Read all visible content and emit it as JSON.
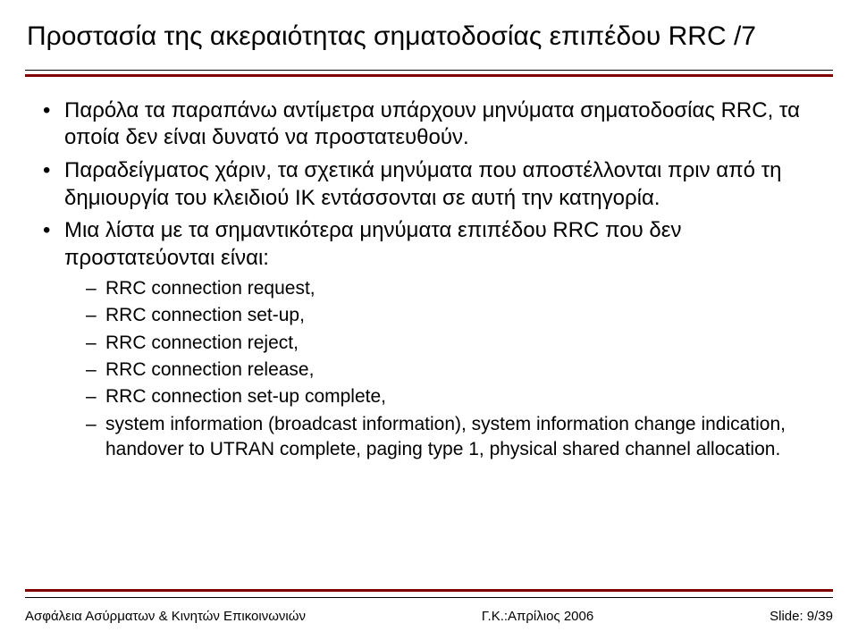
{
  "title": "Προστασία της ακεραιότητας σηματοδοσίας επιπέδου RRC  /7",
  "bullets": {
    "b1": "Παρόλα τα παραπάνω αντίμετρα υπάρχουν μηνύματα σηματοδοσίας RRC, τα οποία δεν είναι δυνατό να προστατευθούν.",
    "b2": "Παραδείγματος χάριν, τα σχετικά μηνύματα που αποστέλλονται πριν από τη δημιουργία του κλειδιού IK εντάσσονται σε αυτή την κατηγορία.",
    "b3": "Μια λίστα με τα σημαντικότερα μηνύματα επιπέδου RRC που δεν προστατεύονται είναι:"
  },
  "sub": {
    "s1": "RRC connection request,",
    "s2": "RRC connection set-up,",
    "s3": "RRC connection reject,",
    "s4": "RRC connection release,",
    "s5": "RRC connection set-up complete,",
    "s6": "system information (broadcast information), system information change indication, handover to UTRAN complete, paging type 1, physical shared channel allocation."
  },
  "footer": {
    "left": "Ασφάλεια Ασύρματων & Κινητών Επικοινωνιών",
    "center": "Γ.Κ.:Απρίλιος 2006",
    "right": "Slide: 9/39"
  },
  "colors": {
    "accent": "#800000",
    "text": "#000000",
    "background": "#ffffff"
  }
}
